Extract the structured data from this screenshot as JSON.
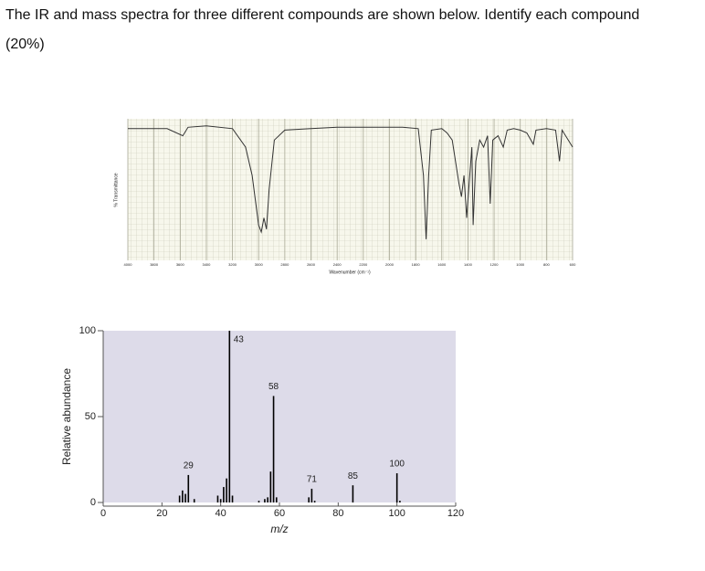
{
  "question": {
    "line1": "The IR and mass spectra for three different compounds are shown below. Identify each compound",
    "line2": "(20%)"
  },
  "chart_data": [
    {
      "type": "line",
      "ylabel": "% Transmittance",
      "xlabel": "Wavenumber (cm⁻¹)",
      "x": [
        4000,
        3700,
        3580,
        3540,
        3400,
        3200,
        3100,
        3050,
        3000,
        2980,
        2960,
        2940,
        2920,
        2880,
        2800,
        2600,
        2400,
        2200,
        2000,
        1900,
        1780,
        1740,
        1720,
        1700,
        1680,
        1600,
        1560,
        1520,
        1470,
        1450,
        1430,
        1410,
        1390,
        1370,
        1360,
        1340,
        1310,
        1280,
        1250,
        1230,
        1210,
        1170,
        1130,
        1100,
        1050,
        1000,
        950,
        900,
        880,
        800,
        730,
        700,
        680,
        600
      ],
      "values": [
        93,
        93,
        88,
        94,
        95,
        93,
        80,
        60,
        25,
        20,
        30,
        22,
        50,
        85,
        92,
        93,
        94,
        94,
        94,
        94,
        93,
        60,
        15,
        60,
        92,
        93,
        90,
        85,
        55,
        45,
        60,
        30,
        55,
        80,
        25,
        70,
        85,
        80,
        88,
        40,
        85,
        88,
        80,
        92,
        93,
        92,
        90,
        82,
        92,
        93,
        92,
        70,
        92,
        80
      ],
      "color": "#333333",
      "xlim": [
        4000,
        600
      ],
      "ylim": [
        0,
        100
      ],
      "xticks": [
        4000,
        3800,
        3600,
        3400,
        3200,
        3000,
        2800,
        2600,
        2400,
        2200,
        2000,
        1800,
        1600,
        1400,
        1200,
        1000,
        800,
        600
      ],
      "grid": true
    },
    {
      "type": "bar",
      "xlabel": "m/z",
      "ylabel": "Relative abundance",
      "x": [
        26,
        27,
        28,
        29,
        31,
        39,
        40,
        41,
        42,
        43,
        44,
        53,
        55,
        56,
        57,
        58,
        59,
        70,
        71,
        72,
        85,
        100,
        101
      ],
      "values": [
        4,
        7,
        5,
        16,
        2,
        4,
        2,
        9,
        14,
        100,
        4,
        1,
        2,
        3,
        18,
        62,
        3,
        3,
        8,
        1,
        10,
        17,
        1
      ],
      "color": "#000000",
      "xlim": [
        0,
        120
      ],
      "ylim": [
        0,
        100
      ],
      "xticks": [
        0,
        20,
        40,
        60,
        80,
        100,
        120
      ],
      "yticks": [
        0,
        50,
        100
      ],
      "peak_labels": [
        29,
        43,
        58,
        71,
        85,
        100
      ]
    }
  ]
}
